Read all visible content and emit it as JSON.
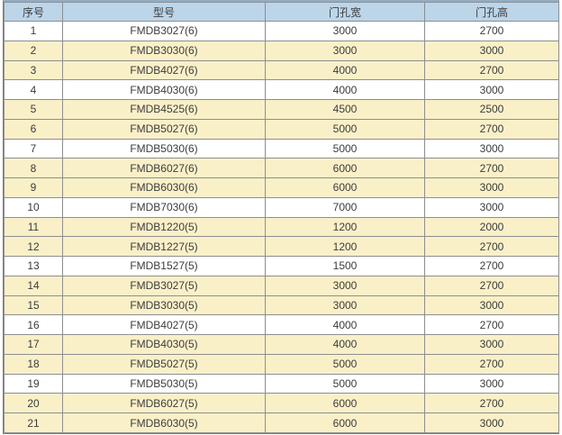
{
  "table": {
    "columns": [
      "序号",
      "型号",
      "门孔宽",
      "门孔高"
    ],
    "rows": [
      [
        "1",
        "FMDB3027(6)",
        "3000",
        "2700"
      ],
      [
        "2",
        "FMDB3030(6)",
        "3000",
        "3000"
      ],
      [
        "3",
        "FMDB4027(6)",
        "4000",
        "2700"
      ],
      [
        "4",
        "FMDB4030(6)",
        "4000",
        "3000"
      ],
      [
        "5",
        "FMDB4525(6)",
        "4500",
        "2500"
      ],
      [
        "6",
        "FMDB5027(6)",
        "5000",
        "2700"
      ],
      [
        "7",
        "FMDB5030(6)",
        "5000",
        "3000"
      ],
      [
        "8",
        "FMDB6027(6)",
        "6000",
        "2700"
      ],
      [
        "9",
        "FMDB6030(6)",
        "6000",
        "3000"
      ],
      [
        "10",
        "FMDB7030(6)",
        "7000",
        "3000"
      ],
      [
        "11",
        "FMDB1220(5)",
        "1200",
        "2000"
      ],
      [
        "12",
        "FMDB1227(5)",
        "1200",
        "2700"
      ],
      [
        "13",
        "FMDB1527(5)",
        "1500",
        "2700"
      ],
      [
        "14",
        "FMDB3027(5)",
        "3000",
        "2700"
      ],
      [
        "15",
        "FMDB3030(5)",
        "3000",
        "3000"
      ],
      [
        "16",
        "FMDB4027(5)",
        "4000",
        "2700"
      ],
      [
        "17",
        "FMDB4030(5)",
        "4000",
        "3000"
      ],
      [
        "18",
        "FMDB5027(5)",
        "5000",
        "2700"
      ],
      [
        "19",
        "FMDB5030(5)",
        "5000",
        "3000"
      ],
      [
        "20",
        "FMDB6027(5)",
        "6000",
        "2700"
      ],
      [
        "21",
        "FMDB6030(5)",
        "6000",
        "3000"
      ]
    ]
  },
  "colors": {
    "header_bg": "#bcd5e9",
    "top_border": "#8faec8",
    "outer_border": "#7d7d7d",
    "grid_line": "#8e8e8e",
    "row_cream": "#faf0c8",
    "row_white": "#ffffff",
    "text_color": "#3c3c3c"
  }
}
